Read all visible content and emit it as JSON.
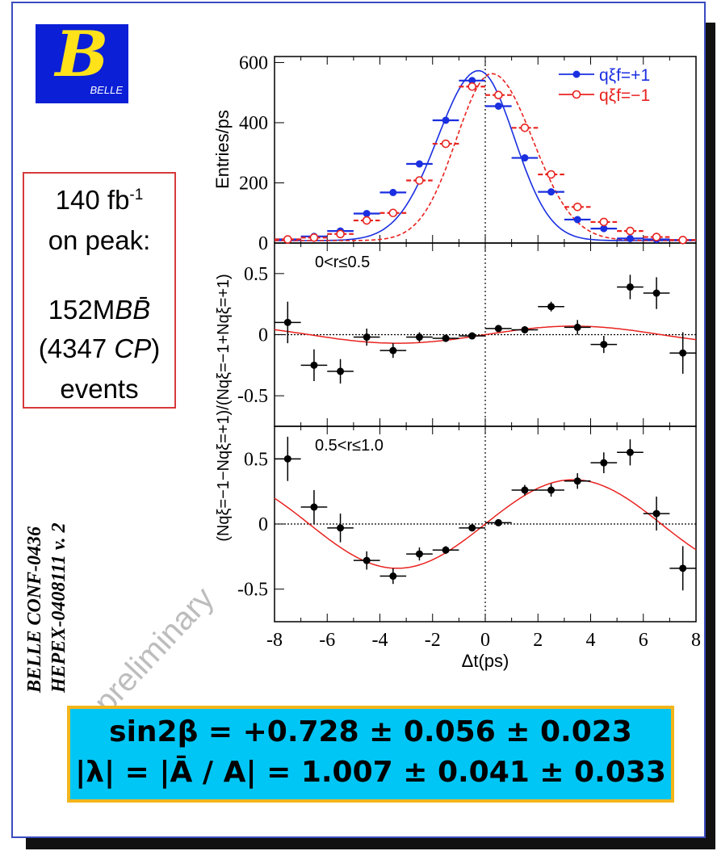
{
  "logo": {
    "letter": "B",
    "text": "BELLE"
  },
  "luminosity": {
    "value": "140 fb",
    "exp": "-1",
    "on_peak": "on peak:",
    "bb": "152M",
    "bb_symbol": "BB̄",
    "cp_open": "(4347",
    "cp_label": "CP",
    "cp_close": ")",
    "events": "events"
  },
  "reference": {
    "line1": "BELLE CONF-0436",
    "line2": "HEPEX-0408111 v. 2"
  },
  "watermark": "preliminary",
  "results": {
    "line1": "sin2β = +0.728 ± 0.056 ± 0.023",
    "line2": "|λ| = |Ā / A| = 1.007 ± 0.041 ± 0.033"
  },
  "colors": {
    "blue": "#1a2fe0",
    "red": "#e8231f",
    "black": "#000000",
    "box_fill": "#00c6f5",
    "box_border": "#f3b51c"
  },
  "chart_data": [
    {
      "type": "scatter",
      "ylabel": "Entries/ps",
      "ylim": [
        0,
        620
      ],
      "yticks": [
        0,
        200,
        400,
        600
      ],
      "xlim": [
        -8,
        8
      ],
      "legend": "top-right",
      "series": [
        {
          "name": "qξf=+1",
          "color": "#1a2fe0",
          "marker": "filled",
          "x": [
            -7.5,
            -6.5,
            -5.5,
            -4.5,
            -3.5,
            -2.5,
            -1.5,
            -0.5,
            0.5,
            1.5,
            2.5,
            3.5,
            4.5,
            5.5,
            6.5,
            7.5
          ],
          "y": [
            12,
            22,
            40,
            98,
            168,
            263,
            408,
            540,
            455,
            283,
            170,
            78,
            48,
            15,
            12,
            10
          ]
        },
        {
          "name": "qξf=−1",
          "color": "#e8231f",
          "marker": "open",
          "x": [
            -7.5,
            -6.5,
            -5.5,
            -4.5,
            -3.5,
            -2.5,
            -1.5,
            -0.5,
            0.5,
            1.5,
            2.5,
            3.5,
            4.5,
            5.5,
            6.5,
            7.5
          ],
          "y": [
            12,
            18,
            30,
            75,
            100,
            208,
            330,
            520,
            492,
            383,
            228,
            120,
            70,
            40,
            20,
            10
          ]
        }
      ]
    },
    {
      "type": "scatter",
      "annotation": "0<r≤0.5",
      "ylabel": "(Nqξ=−1−Nqξ=+1)/(Nqξ=−1+Nqξ=+1)",
      "ylim": [
        -0.75,
        0.75
      ],
      "yticks": [
        0.5,
        0,
        -0.5
      ],
      "xlim": [
        -8,
        8
      ],
      "x": [
        -7.5,
        -6.5,
        -5.5,
        -4.5,
        -3.5,
        -2.5,
        -1.5,
        -0.5,
        0.5,
        1.5,
        2.5,
        3.5,
        4.5,
        5.5,
        6.5,
        7.5
      ],
      "y": [
        0.1,
        -0.25,
        -0.3,
        -0.02,
        -0.13,
        -0.02,
        -0.03,
        -0.01,
        0.05,
        0.04,
        0.23,
        0.06,
        -0.08,
        0.39,
        0.34,
        -0.15
      ],
      "yerr": [
        0.17,
        0.13,
        0.1,
        0.07,
        0.06,
        0.04,
        0.03,
        0.02,
        0.02,
        0.03,
        0.04,
        0.06,
        0.07,
        0.1,
        0.13,
        0.17
      ]
    },
    {
      "type": "scatter",
      "annotation": "0.5<r≤1.0",
      "ylim": [
        -0.75,
        0.75
      ],
      "yticks": [
        0.5,
        0,
        -0.5
      ],
      "xlim": [
        -8,
        8
      ],
      "xticks": [
        -8,
        -6,
        -4,
        -2,
        0,
        2,
        4,
        6,
        8
      ],
      "xlabel": "Δt(ps)",
      "x": [
        -7.5,
        -6.5,
        -5.5,
        -4.5,
        -3.5,
        -2.5,
        -1.5,
        -0.5,
        0.5,
        1.5,
        2.5,
        3.5,
        4.5,
        5.5,
        6.5,
        7.5
      ],
      "y": [
        0.5,
        0.13,
        -0.03,
        -0.28,
        -0.4,
        -0.23,
        -0.2,
        -0.03,
        0.01,
        0.26,
        0.26,
        0.33,
        0.47,
        0.55,
        0.08,
        -0.34
      ],
      "yerr": [
        0.17,
        0.13,
        0.11,
        0.07,
        0.06,
        0.05,
        0.03,
        0.02,
        0.02,
        0.04,
        0.05,
        0.06,
        0.08,
        0.1,
        0.13,
        0.17
      ]
    }
  ]
}
